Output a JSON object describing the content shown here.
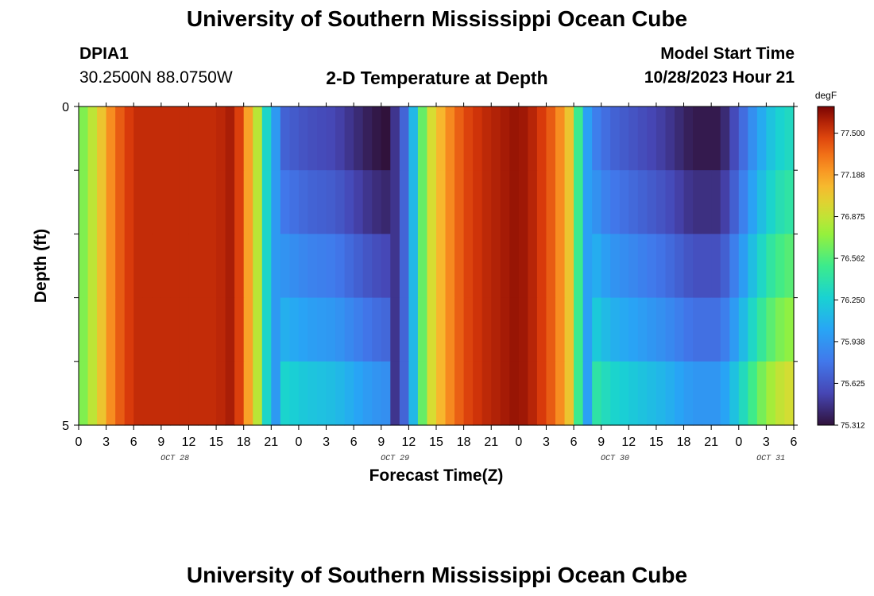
{
  "header": {
    "title": "University of Southern Mississippi Ocean Cube",
    "station_id": "DPIA1",
    "station_coords": "30.2500N  88.0750W",
    "model_label": "Model Start Time",
    "model_time": "10/28/2023 Hour 21",
    "footer_title": "University of Southern Mississippi Ocean Cube"
  },
  "chart_data": {
    "type": "heatmap",
    "title": "2-D Temperature at Depth",
    "xlabel": "Forecast Time(Z)",
    "ylabel": "Depth (ft)",
    "units": "degF",
    "x_ticks": [
      "0",
      "3",
      "6",
      "9",
      "12",
      "15",
      "18",
      "21",
      "0",
      "3",
      "6",
      "9",
      "12",
      "15",
      "18",
      "21",
      "0",
      "3",
      "6",
      "9",
      "12",
      "15",
      "18",
      "21",
      "0",
      "3",
      "6"
    ],
    "x_range_hours": [
      0,
      78
    ],
    "date_labels": [
      {
        "label": "OCT 28",
        "hour": 10.5
      },
      {
        "label": "OCT 29",
        "hour": 34.5
      },
      {
        "label": "OCT 30",
        "hour": 58.5
      },
      {
        "label": "OCT 31",
        "hour": 75.5
      }
    ],
    "y_ticks": [
      "0",
      "5"
    ],
    "y_range": [
      0,
      5
    ],
    "depth_levels": 5,
    "colorbar": {
      "min": 75.312,
      "max": 77.7,
      "labels": [
        "77.500",
        "77.188",
        "76.875",
        "76.562",
        "76.250",
        "75.938",
        "75.625",
        "75.312"
      ]
    },
    "time_series_profile_degF": [
      [
        0,
        76.6
      ],
      [
        2,
        76.95
      ],
      [
        4,
        77.35
      ],
      [
        6,
        77.55
      ],
      [
        9,
        77.55
      ],
      [
        12,
        77.55
      ],
      [
        15,
        77.55
      ],
      [
        17,
        77.62
      ],
      [
        18,
        77.35
      ],
      [
        19.5,
        76.85
      ],
      [
        20.5,
        76.3
      ],
      [
        22,
        75.8
      ],
      [
        25,
        75.7
      ],
      [
        28,
        75.65
      ],
      [
        30,
        75.55
      ],
      [
        32,
        75.45
      ],
      [
        34,
        75.4
      ],
      [
        35,
        75.55
      ],
      [
        36,
        75.85
      ],
      [
        36.8,
        76.3
      ],
      [
        38,
        76.85
      ],
      [
        40,
        77.2
      ],
      [
        42,
        77.45
      ],
      [
        44,
        77.55
      ],
      [
        46,
        77.6
      ],
      [
        48,
        77.65
      ],
      [
        50,
        77.55
      ],
      [
        52,
        77.35
      ],
      [
        53.5,
        77.05
      ],
      [
        54.5,
        76.5
      ],
      [
        55.5,
        76.0
      ],
      [
        58,
        75.8
      ],
      [
        61,
        75.7
      ],
      [
        64,
        75.6
      ],
      [
        67,
        75.45
      ],
      [
        70,
        75.45
      ],
      [
        72,
        75.75
      ],
      [
        74,
        76.1
      ],
      [
        76,
        76.35
      ],
      [
        78,
        76.45
      ]
    ],
    "depth_anomaly_after_front_degF": [
      -0.1,
      0.0,
      0.15,
      0.3,
      0.5
    ]
  }
}
